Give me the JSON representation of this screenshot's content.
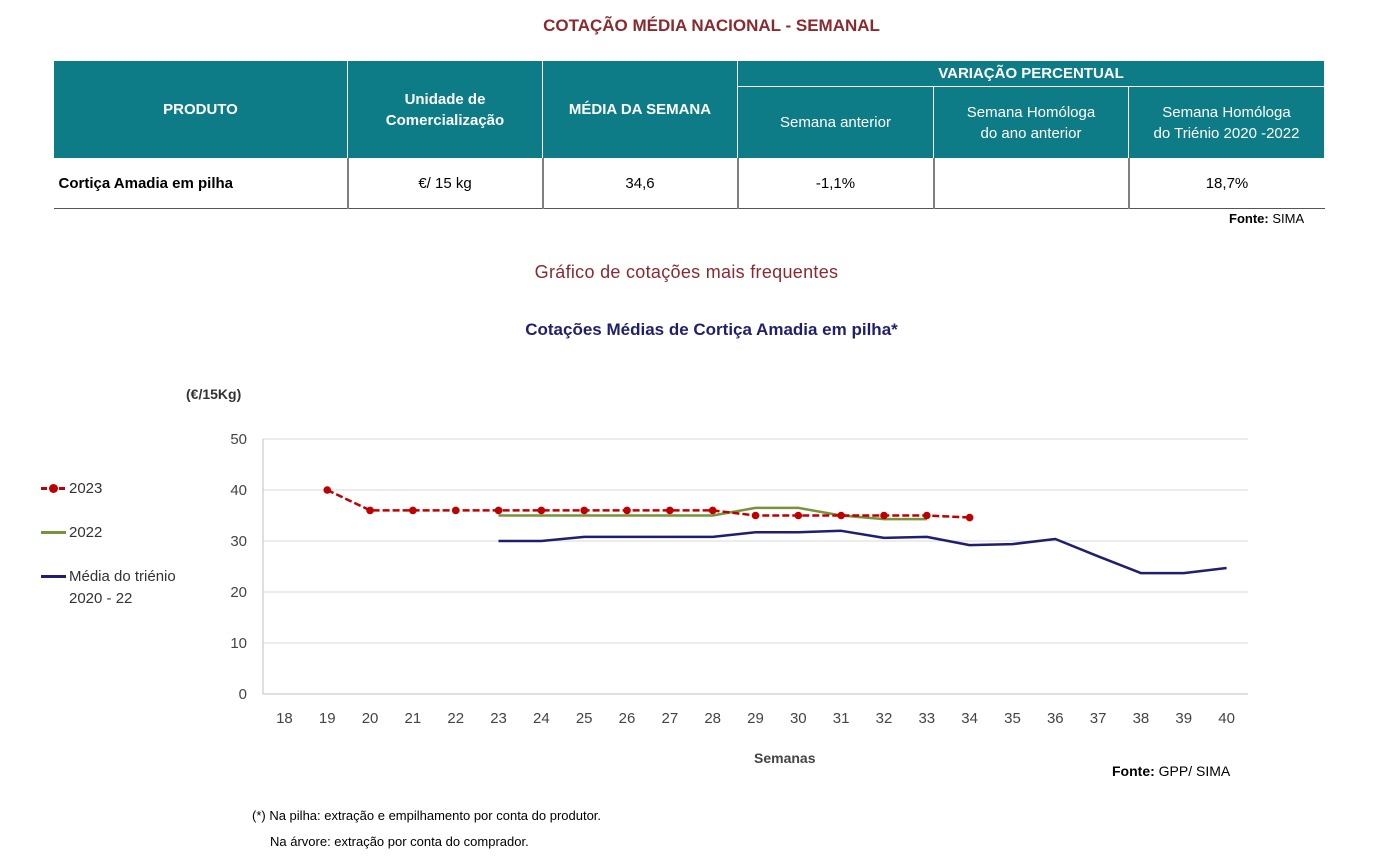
{
  "main_title": "COTAÇÃO MÉDIA NACIONAL - SEMANAL",
  "table": {
    "headers": {
      "produto": "PRODUTO",
      "unidade_l1": "Unidade de",
      "unidade_l2": "Comercialização",
      "media": "MÉDIA DA SEMANA",
      "variacao": "VARIAÇÃO PERCENTUAL",
      "semana_anterior": "Semana anterior",
      "homologa_l1": "Semana Homóloga",
      "homologa_l2": "do ano anterior",
      "trienio_l1": "Semana Homóloga",
      "trienio_l2": "do Triénio 2020 -2022"
    },
    "row": {
      "produto": "Cortiça Amadia em pilha",
      "unidade": "€/ 15 kg",
      "media": "34,6",
      "semana_anterior": "-1,1%",
      "homologa": "",
      "trienio": "18,7%"
    },
    "fonte_label": "Fonte:",
    "fonte_value": "SIMA"
  },
  "section_title": "Gráfico de cotações mais frequentes",
  "chart_data": {
    "type": "line",
    "title": "Cotações Médias de Cortiça Amadia em pilha*",
    "ylabel": "(€/15Kg)",
    "xlabel": "Semanas",
    "ylim": [
      0,
      50
    ],
    "yticks": [
      0,
      10,
      20,
      30,
      40,
      50
    ],
    "x": [
      18,
      19,
      20,
      21,
      22,
      23,
      24,
      25,
      26,
      27,
      28,
      29,
      30,
      31,
      32,
      33,
      34,
      35,
      36,
      37,
      38,
      39,
      40
    ],
    "grid": true,
    "legend_position": "left",
    "series": [
      {
        "name": "2023",
        "color": "#c00000",
        "style": "dashed-markers",
        "points": [
          [
            19,
            40
          ],
          [
            20,
            36
          ],
          [
            21,
            36
          ],
          [
            22,
            36
          ],
          [
            23,
            36
          ],
          [
            24,
            36
          ],
          [
            25,
            36
          ],
          [
            26,
            36
          ],
          [
            27,
            36
          ],
          [
            28,
            36
          ],
          [
            29,
            35
          ],
          [
            30,
            35
          ],
          [
            31,
            35
          ],
          [
            32,
            35
          ],
          [
            33,
            35
          ],
          [
            34,
            34.6
          ]
        ]
      },
      {
        "name": "2022",
        "color": "#77933c",
        "style": "solid",
        "points": [
          [
            23,
            35
          ],
          [
            24,
            35
          ],
          [
            25,
            35
          ],
          [
            26,
            35
          ],
          [
            27,
            35
          ],
          [
            28,
            35
          ],
          [
            29,
            36.5
          ],
          [
            30,
            36.5
          ],
          [
            31,
            35
          ],
          [
            32,
            34.3
          ],
          [
            33,
            34.3
          ]
        ]
      },
      {
        "name": "Média do triénio 2020 - 22",
        "name_l1": "Média do triénio",
        "name_l2": "2020 - 22",
        "color": "#1f1f6e",
        "style": "solid",
        "points": [
          [
            23,
            30
          ],
          [
            24,
            30
          ],
          [
            25,
            30.8
          ],
          [
            26,
            30.8
          ],
          [
            27,
            30.8
          ],
          [
            28,
            30.8
          ],
          [
            29,
            31.7
          ],
          [
            30,
            31.7
          ],
          [
            31,
            32
          ],
          [
            32,
            30.6
          ],
          [
            33,
            30.8
          ],
          [
            34,
            29.2
          ],
          [
            35,
            29.4
          ],
          [
            36,
            30.4
          ],
          [
            37,
            27
          ],
          [
            38,
            23.7
          ],
          [
            39,
            23.7
          ],
          [
            40,
            24.7
          ]
        ]
      }
    ]
  },
  "chart_fonte_label": "Fonte:",
  "chart_fonte_value": "GPP/ SIMA",
  "footnote_1": "(*) Na pilha: extração e empilhamento por conta do produtor.",
  "footnote_2": "Na árvore: extração por conta do comprador."
}
